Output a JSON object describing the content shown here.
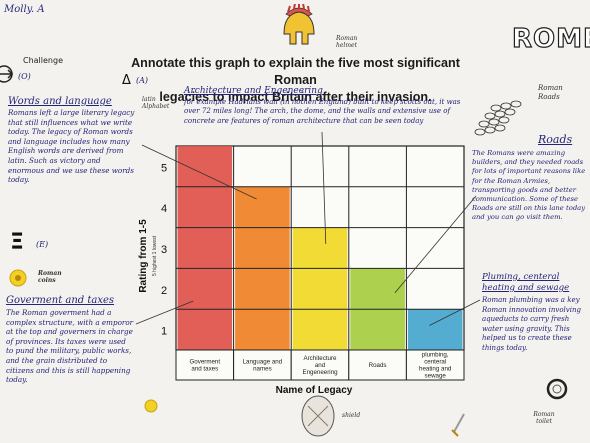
{
  "header": {
    "name": "Molly. A",
    "title_line1": "Annotate this graph to explain the five most significant Roman",
    "title_line2": "legacies to impact Britain after their invasion.",
    "challenge_label": "Challenge",
    "level_o": "(O)",
    "level_a": "(A)",
    "level_e": "(E)",
    "latin_alphabet_note": "latin Alphabet",
    "rome_word": "ROME"
  },
  "sketch_labels": {
    "helmet": "Roman helmet",
    "roads": "Roman Roads",
    "coins": "Roman coins",
    "shield": "shield",
    "toilet": "Roman toilet"
  },
  "annotations": {
    "words": {
      "title": "Words and language",
      "text": "Romans left a large literary legacy that still influences what we write today. The legacy of Roman words and language includes how many English words are derived from latin. Such as victory and enormous and we use these words today."
    },
    "government": {
      "title": "Goverment and taxes",
      "text": "The Roman goverment had a complex structure, with a emporor at the top and governers in charge of provinces. Its taxes were used to pund the military, public works, and the grain distributed to citizens and this is still happening today."
    },
    "architecture": {
      "title": "Architecture and Engeneering",
      "text": "for example Hadrians wall (in nothen England) built to keep scotts out, it was over 72 miles long! The arch, the dome, and the walls and extensive use of concrete are features of roman architecture that can be seen today"
    },
    "roads": {
      "title": "Roads",
      "text": "The Romans were amazing builders, and they needed roads for lots of important reasons like for the Roman Armies, transporting goods and better communication. Some of these Roads are still on this lane today and you can go visit them."
    },
    "plumbing": {
      "title": "Pluming, centeral heating and sewage",
      "text": "Roman plumbing was a key Roman innovation involving aqueducts to carry fresh water using gravity. This helped us to create these things today."
    }
  },
  "chart_data": {
    "type": "bar",
    "title": "Annotate this graph to explain the five most significant Roman legacies to impact Britain after their invasion.",
    "xlabel": "Name of Legacy",
    "ylabel": "Rating from 1-5",
    "ylabel_sub": "5 highest 1 lowest",
    "categories": [
      "Goverment and taxes",
      "Language and names",
      "Architecture and Engeneering",
      "Roads",
      "plumbing, centeral heating and sewage"
    ],
    "values": [
      5,
      4,
      3,
      2,
      1
    ],
    "ylim": [
      0,
      5
    ],
    "yticks": [
      "1",
      "2",
      "3",
      "4",
      "5"
    ],
    "colors": [
      "#e0514a",
      "#ef8023",
      "#f2d824",
      "#a6cc3f",
      "#45a6cc"
    ],
    "grid": true
  }
}
